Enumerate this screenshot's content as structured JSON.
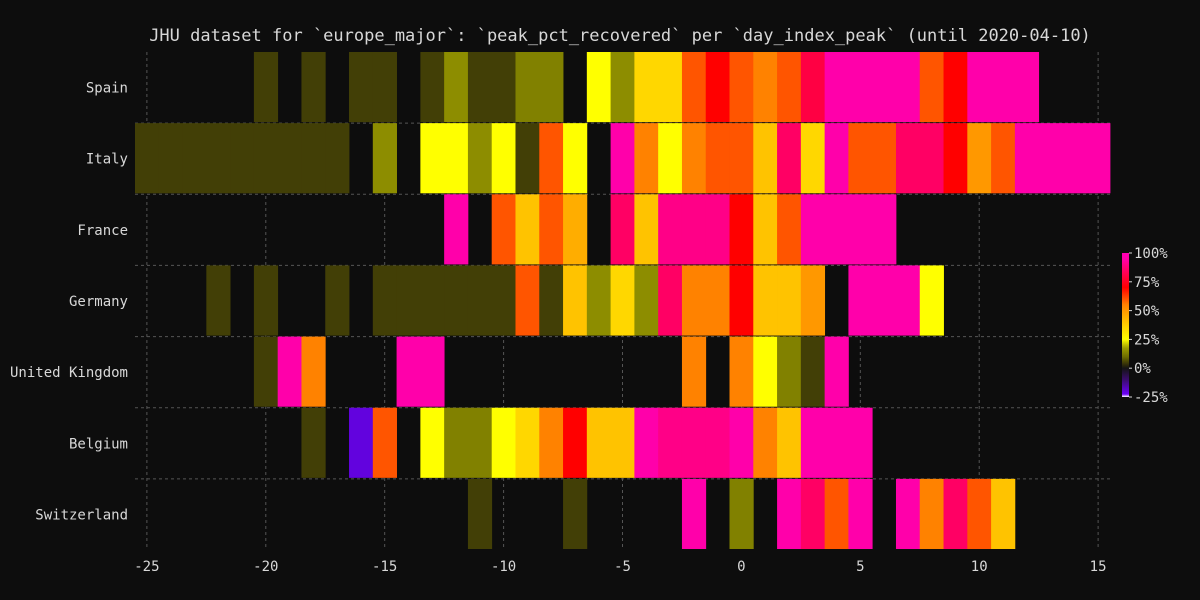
{
  "chart_data": {
    "type": "heatmap",
    "title": "JHU dataset for `europe_major`: `peak_pct_recovered` per `day_index_peak` (until 2020-04-10)",
    "xlabel": "",
    "ylabel": "",
    "xlim": [
      -25.5,
      15.5
    ],
    "xticks": [
      -25,
      -20,
      -15,
      -10,
      -5,
      0,
      5,
      10,
      15
    ],
    "grid": true,
    "colorbar": {
      "range": [
        -25,
        100
      ],
      "ticks": [
        -25,
        0,
        25,
        50,
        75,
        100
      ],
      "tick_labels": [
        "-25%",
        "0%",
        "25%",
        "50%",
        "75%",
        "100%"
      ],
      "placement": "right"
    },
    "rows": [
      "Spain",
      "Italy",
      "France",
      "Germany",
      "United Kingdom",
      "Belgium",
      "Switzerland"
    ],
    "series": [
      {
        "name": "Spain",
        "cells": [
          [
            -20,
            5
          ],
          [
            -18,
            5
          ],
          [
            -16,
            5
          ],
          [
            -15,
            5
          ],
          [
            -13,
            5
          ],
          [
            -12,
            15
          ],
          [
            -11,
            5
          ],
          [
            -10,
            5
          ],
          [
            -9,
            13
          ],
          [
            -8,
            13
          ],
          [
            -6,
            25
          ],
          [
            -5,
            15
          ],
          [
            -4,
            35
          ],
          [
            -3,
            35
          ],
          [
            -2,
            60
          ],
          [
            -1,
            70
          ],
          [
            0,
            60
          ],
          [
            1,
            55
          ],
          [
            2,
            60
          ],
          [
            3,
            80
          ],
          [
            4,
            95
          ],
          [
            5,
            95
          ],
          [
            6,
            95
          ],
          [
            7,
            95
          ],
          [
            8,
            60
          ],
          [
            9,
            70
          ],
          [
            10,
            95
          ],
          [
            11,
            95
          ],
          [
            12,
            95
          ]
        ]
      },
      {
        "name": "Italy",
        "cells": [
          [
            -25,
            5
          ],
          [
            -24,
            5
          ],
          [
            -23,
            5
          ],
          [
            -22,
            5
          ],
          [
            -21,
            5
          ],
          [
            -20,
            5
          ],
          [
            -19,
            5
          ],
          [
            -18,
            5
          ],
          [
            -17,
            5
          ],
          [
            -15,
            15
          ],
          [
            -13,
            25
          ],
          [
            -12,
            25
          ],
          [
            -11,
            15
          ],
          [
            -10,
            25
          ],
          [
            -9,
            5
          ],
          [
            -8,
            60
          ],
          [
            -7,
            25
          ],
          [
            -5,
            95
          ],
          [
            -4,
            55
          ],
          [
            -3,
            25
          ],
          [
            -2,
            55
          ],
          [
            -1,
            60
          ],
          [
            0,
            60
          ],
          [
            1,
            40
          ],
          [
            2,
            85
          ],
          [
            3,
            35
          ],
          [
            4,
            95
          ],
          [
            5,
            60
          ],
          [
            6,
            60
          ],
          [
            7,
            85
          ],
          [
            8,
            85
          ],
          [
            9,
            70
          ],
          [
            10,
            50
          ],
          [
            11,
            60
          ],
          [
            12,
            95
          ],
          [
            13,
            95
          ],
          [
            14,
            95
          ],
          [
            15,
            95
          ]
        ]
      },
      {
        "name": "France",
        "cells": [
          [
            -12,
            95
          ],
          [
            -10,
            60
          ],
          [
            -9,
            40
          ],
          [
            -8,
            60
          ],
          [
            -7,
            45
          ],
          [
            -5,
            85
          ],
          [
            -4,
            40
          ],
          [
            -3,
            90
          ],
          [
            -2,
            90
          ],
          [
            -1,
            90
          ],
          [
            0,
            70
          ],
          [
            1,
            40
          ],
          [
            2,
            60
          ],
          [
            3,
            95
          ],
          [
            4,
            95
          ],
          [
            5,
            95
          ],
          [
            6,
            95
          ]
        ]
      },
      {
        "name": "Germany",
        "cells": [
          [
            -22,
            5
          ],
          [
            -20,
            5
          ],
          [
            -17,
            5
          ],
          [
            -15,
            5
          ],
          [
            -14,
            5
          ],
          [
            -13,
            5
          ],
          [
            -12,
            5
          ],
          [
            -11,
            5
          ],
          [
            -10,
            5
          ],
          [
            -9,
            60
          ],
          [
            -8,
            5
          ],
          [
            -7,
            40
          ],
          [
            -6,
            15
          ],
          [
            -5,
            35
          ],
          [
            -4,
            15
          ],
          [
            -3,
            85
          ],
          [
            -2,
            55
          ],
          [
            -1,
            55
          ],
          [
            0,
            70
          ],
          [
            1,
            40
          ],
          [
            2,
            40
          ],
          [
            3,
            50
          ],
          [
            5,
            95
          ],
          [
            6,
            95
          ],
          [
            7,
            95
          ],
          [
            8,
            25
          ]
        ]
      },
      {
        "name": "United Kingdom",
        "cells": [
          [
            -20,
            5
          ],
          [
            -19,
            95
          ],
          [
            -18,
            55
          ],
          [
            -14,
            95
          ],
          [
            -13,
            95
          ],
          [
            -2,
            55
          ],
          [
            0,
            55
          ],
          [
            1,
            25
          ],
          [
            2,
            13
          ],
          [
            3,
            5
          ],
          [
            4,
            95
          ]
        ]
      },
      {
        "name": "Belgium",
        "cells": [
          [
            -18,
            5
          ],
          [
            -16,
            -20
          ],
          [
            -15,
            60
          ],
          [
            -13,
            25
          ],
          [
            -12,
            13
          ],
          [
            -11,
            13
          ],
          [
            -10,
            25
          ],
          [
            -9,
            35
          ],
          [
            -8,
            55
          ],
          [
            -7,
            70
          ],
          [
            -6,
            40
          ],
          [
            -5,
            40
          ],
          [
            -4,
            95
          ],
          [
            -3,
            90
          ],
          [
            -2,
            90
          ],
          [
            -1,
            90
          ],
          [
            0,
            95
          ],
          [
            1,
            55
          ],
          [
            2,
            40
          ],
          [
            3,
            95
          ],
          [
            4,
            95
          ],
          [
            5,
            95
          ]
        ]
      },
      {
        "name": "Switzerland",
        "cells": [
          [
            -11,
            5
          ],
          [
            -7,
            5
          ],
          [
            -2,
            95
          ],
          [
            0,
            13
          ],
          [
            2,
            95
          ],
          [
            3,
            85
          ],
          [
            4,
            60
          ],
          [
            5,
            95
          ],
          [
            7,
            95
          ],
          [
            8,
            55
          ],
          [
            9,
            85
          ],
          [
            10,
            60
          ],
          [
            11,
            40
          ]
        ]
      }
    ]
  }
}
